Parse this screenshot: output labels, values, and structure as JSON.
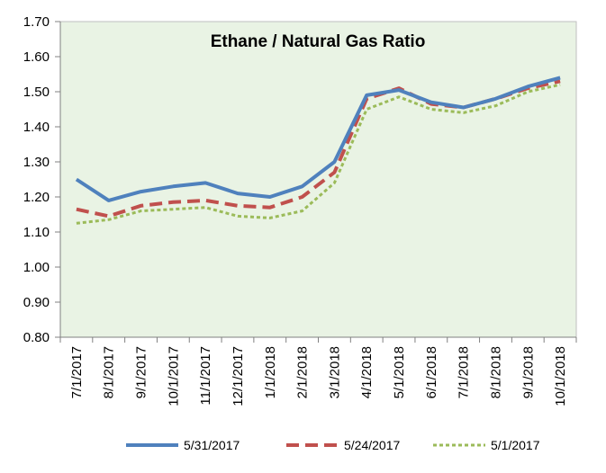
{
  "chart_data": {
    "type": "line",
    "title": "Ethane / Natural Gas Ratio",
    "xlabel": "",
    "ylabel": "",
    "ylim": [
      0.8,
      1.7
    ],
    "yticks": [
      "0.80",
      "0.90",
      "1.00",
      "1.10",
      "1.20",
      "1.30",
      "1.40",
      "1.50",
      "1.60",
      "1.70"
    ],
    "grid": false,
    "legend_position": "bottom",
    "categories": [
      "7/1/2017",
      "8/1/2017",
      "9/1/2017",
      "10/1/2017",
      "11/1/2017",
      "12/1/2017",
      "1/1/2018",
      "2/1/2018",
      "3/1/2018",
      "4/1/2018",
      "5/1/2018",
      "6/1/2018",
      "7/1/2018",
      "8/1/2018",
      "9/1/2018",
      "10/1/2018"
    ],
    "series": [
      {
        "name": "5/31/2017",
        "color": "#4f81bd",
        "style": "solid",
        "values": [
          1.25,
          1.19,
          1.215,
          1.23,
          1.24,
          1.21,
          1.2,
          1.23,
          1.3,
          1.49,
          1.505,
          1.47,
          1.455,
          1.48,
          1.515,
          1.54
        ]
      },
      {
        "name": "5/24/2017",
        "color": "#c0504d",
        "style": "dash",
        "values": [
          1.165,
          1.145,
          1.175,
          1.185,
          1.19,
          1.175,
          1.17,
          1.2,
          1.27,
          1.48,
          1.51,
          1.465,
          1.455,
          1.48,
          1.51,
          1.53
        ]
      },
      {
        "name": "5/1/2017",
        "color": "#9bbb59",
        "style": "dot",
        "values": [
          1.125,
          1.135,
          1.16,
          1.165,
          1.17,
          1.145,
          1.14,
          1.16,
          1.24,
          1.45,
          1.485,
          1.45,
          1.44,
          1.46,
          1.5,
          1.52
        ]
      }
    ]
  }
}
